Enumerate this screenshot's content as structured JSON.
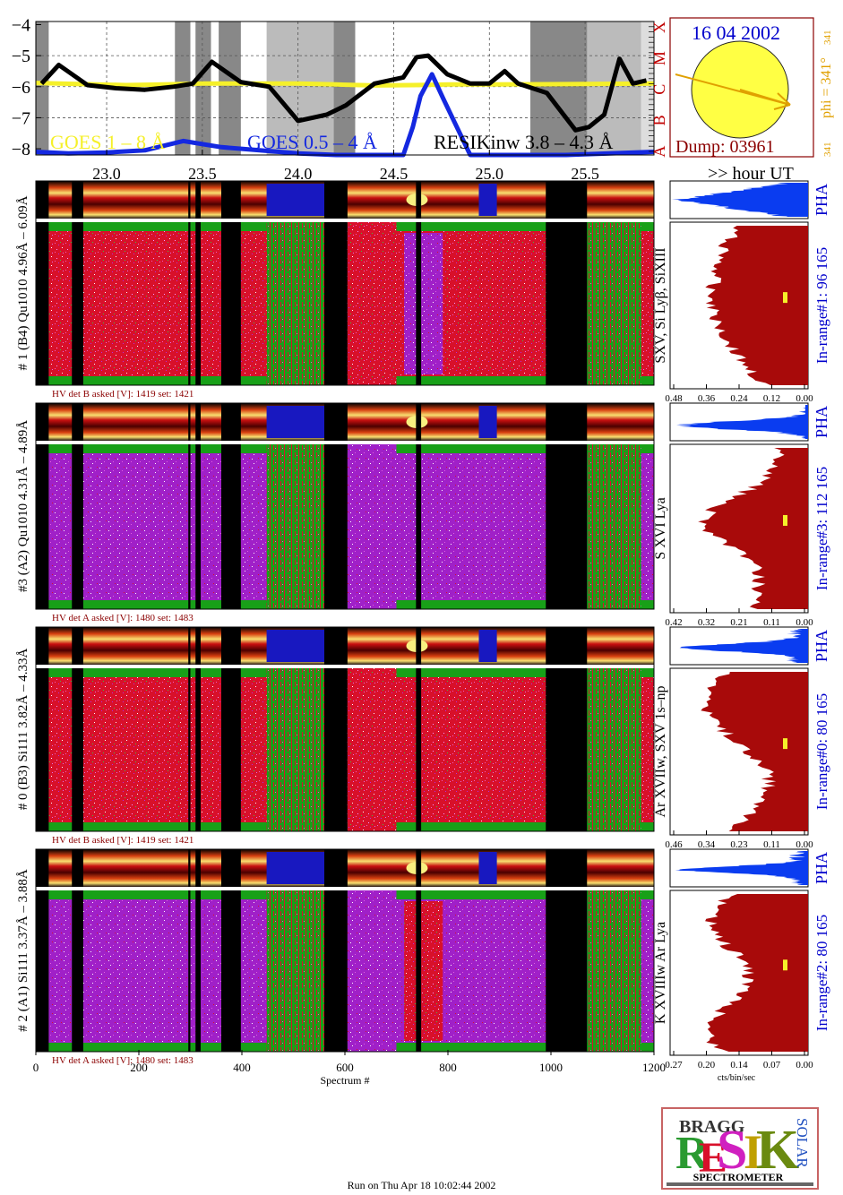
{
  "header": {
    "date": "16 04 2002",
    "dump": "Dump: 03961",
    "phi": "phi = 341°",
    "phi_sub": "341",
    "phi_small": "341"
  },
  "goes": {
    "legend_goes_long": "GOES 1 – 8 Å",
    "legend_goes_short": "GOES 0.5 – 4 Å",
    "legend_resik": "RESIKinw 3.8 – 4.3 Å",
    "y_ticks": [
      "−4",
      "−5",
      "−6",
      "−7",
      "−8"
    ],
    "class_letters": [
      "X",
      "M",
      "C",
      "B",
      "A"
    ],
    "time_ticks": [
      "23.0",
      "23.5",
      "24.0",
      "24.5",
      "25.0",
      "25.5"
    ],
    "hour_label": ">> hour UT"
  },
  "detectors": [
    {
      "label": "# 1 (B4) Qu1010 4.96Å – 6.09Å",
      "lines": "SXV, Si Lyβ, SiXIII",
      "range": "In-range#1:  96 165",
      "hv": "HV det B asked [V]:  1419 set:  1421",
      "pha": "PHA",
      "ticks": [
        "0.48",
        "0.36",
        "0.24",
        "0.12",
        "0.00"
      ]
    },
    {
      "label": "#3 (A2) Qu1010  4.31Å – 4.89Å",
      "lines": "S XVI Lya",
      "range": "In-range#3:  112 165",
      "hv": "HV det A asked [V]:  1480 set:  1483",
      "pha": "PHA",
      "ticks": [
        "0.42",
        "0.32",
        "0.21",
        "0.11",
        "0.00"
      ]
    },
    {
      "label": "# 0 (B3) Si111  3.82Å – 4.33Å",
      "lines": "Ar XVIIw,  SXV 1s–np",
      "range": "In-range#0:   80 165",
      "hv": "HV det B asked [V]:  1419 set:  1421",
      "pha": "PHA",
      "ticks": [
        "0.46",
        "0.34",
        "0.23",
        "0.11",
        "0.00"
      ]
    },
    {
      "label": "# 2 (A1) Si111  3.37Å – 3.88Å",
      "lines": "K XVIIIw  Ar Lya",
      "range": "In-range#2:   80 165",
      "hv": "HV det A asked [V]:  1480 set:  1483",
      "pha": "PHA",
      "ticks": [
        "0.27",
        "0.20",
        "0.14",
        "0.07",
        "0.00"
      ]
    }
  ],
  "x_axis": {
    "ticks": [
      "0",
      "200",
      "400",
      "600",
      "800",
      "1000",
      "1200"
    ],
    "label": "Spectrum #",
    "right_label": "cts/bin/sec"
  },
  "logo": {
    "small_text": "BRAGG",
    "solar": "SOLAR",
    "big": "RESIK",
    "bottom": "SPECTROMETER"
  },
  "footer": "Run on Thu Apr 18 10:02:44 2002",
  "colors": {
    "goes_long": "#f5f02a",
    "goes_short": "#1428e0",
    "resik": "#000000",
    "label_blue": "#0000cc",
    "hv_text": "#8b0000",
    "spectrum_fill": "#a80a0a",
    "pha_fill": "#0a3cf0",
    "phi_color": "#e0a000"
  },
  "chart_data": {
    "type": "line",
    "title": "",
    "xlabel": ">> hour UT",
    "ylabel": "",
    "xlim": [
      22.63,
      25.86
    ],
    "ylim": [
      -8.2,
      -3.9
    ],
    "series": [
      {
        "name": "GOES 1 – 8 Å",
        "x": [
          22.63,
          22.75,
          22.9,
          23.1,
          23.3,
          23.5,
          23.8,
          24.0,
          24.2,
          24.4,
          24.6,
          24.8,
          25.0,
          25.3,
          25.6,
          25.86
        ],
        "y": [
          -5.88,
          -5.9,
          -5.92,
          -5.95,
          -5.93,
          -5.9,
          -5.9,
          -5.9,
          -5.93,
          -5.96,
          -5.95,
          -5.93,
          -5.93,
          -5.92,
          -5.91,
          -5.9
        ]
      },
      {
        "name": "GOES 0.5 – 4 Å",
        "x": [
          22.63,
          22.8,
          23.0,
          23.2,
          23.4,
          23.6,
          23.8,
          24.0,
          24.2,
          24.4,
          24.55,
          24.6,
          24.64,
          24.7,
          24.76,
          24.9,
          25.4,
          25.86
        ],
        "y": [
          -8.1,
          -8.15,
          -8.12,
          -8.05,
          -7.75,
          -7.95,
          -8.05,
          -8.15,
          -8.2,
          -8.2,
          -8.2,
          -7.3,
          -6.3,
          -5.6,
          -6.4,
          -8.2,
          -8.2,
          -8.1
        ]
      },
      {
        "name": "RESIKinw 3.8 – 4.3 Å",
        "x": [
          22.66,
          22.75,
          22.9,
          23.05,
          23.2,
          23.35,
          23.45,
          23.55,
          23.7,
          23.85,
          24.0,
          24.15,
          24.25,
          24.4,
          24.55,
          24.62,
          24.68,
          24.78,
          24.9,
          25.0,
          25.08,
          25.15,
          25.3,
          25.45,
          25.52,
          25.6,
          25.68,
          25.75,
          25.82
        ],
        "y": [
          -5.9,
          -5.3,
          -5.95,
          -6.05,
          -6.1,
          -6.0,
          -5.9,
          -5.2,
          -5.85,
          -6.0,
          -7.1,
          -6.9,
          -6.6,
          -5.9,
          -5.7,
          -5.05,
          -5.0,
          -5.6,
          -5.9,
          -5.9,
          -5.5,
          -5.9,
          -6.2,
          -7.4,
          -7.3,
          -6.9,
          -5.1,
          -5.9,
          -5.8
        ]
      }
    ],
    "flare_classes": [
      "A",
      "B",
      "C",
      "M",
      "X"
    ],
    "spectrograms": [
      {
        "detector": "# 1 (B4) Qu1010 4.96Å – 6.09Å",
        "in_range": "96 165",
        "x_range": [
          0,
          1200
        ]
      },
      {
        "detector": "#3 (A2) Qu1010  4.31Å – 4.89Å",
        "in_range": "112 165",
        "x_range": [
          0,
          1200
        ]
      },
      {
        "detector": "# 0 (B3) Si111  3.82Å – 4.33Å",
        "in_range": "80 165",
        "x_range": [
          0,
          1200
        ]
      },
      {
        "detector": "# 2 (A1) Si111  3.37Å – 3.88Å",
        "in_range": "80 165",
        "x_range": [
          0,
          1200
        ]
      }
    ],
    "spectrum_axes": [
      {
        "detector": "#1",
        "xlim": [
          0.48,
          0.0
        ]
      },
      {
        "detector": "#3",
        "xlim": [
          0.42,
          0.0
        ]
      },
      {
        "detector": "#0",
        "xlim": [
          0.46,
          0.0
        ]
      },
      {
        "detector": "#2",
        "xlim": [
          0.27,
          0.0
        ]
      }
    ],
    "x_ticks": [
      0,
      200,
      400,
      600,
      800,
      1000,
      1200
    ],
    "xlabel_bottom": "Spectrum #",
    "xlabel_spectrum": "cts/bin/sec"
  }
}
